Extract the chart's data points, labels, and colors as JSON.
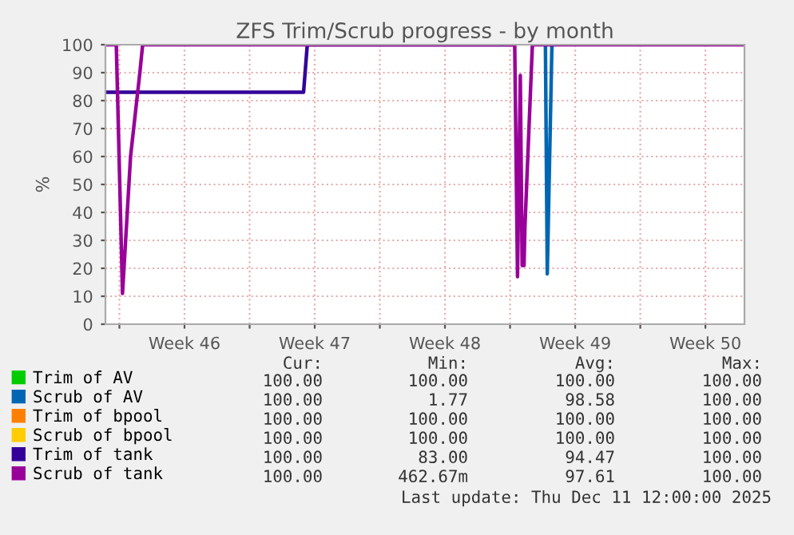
{
  "chart_data": {
    "type": "line",
    "title": "ZFS Trim/Scrub progress - by month",
    "ylabel": "%",
    "xlim": [
      "2025-11-09T06:00",
      "2025-12-13T14:24"
    ],
    "ylim": [
      0,
      100
    ],
    "xticks": [
      {
        "value": "2025-11-10T00:00",
        "label": null
      },
      {
        "value": "2025-11-13T12:00",
        "label": "Week 46"
      },
      {
        "value": "2025-11-17T00:00",
        "label": null
      },
      {
        "value": "2025-11-20T12:00",
        "label": "Week 47"
      },
      {
        "value": "2025-11-24T00:00",
        "label": null
      },
      {
        "value": "2025-11-27T12:00",
        "label": "Week 48"
      },
      {
        "value": "2025-12-01T00:00",
        "label": null
      },
      {
        "value": "2025-12-04T12:00",
        "label": "Week 49"
      },
      {
        "value": "2025-12-08T00:00",
        "label": null
      },
      {
        "value": "2025-12-11T12:00",
        "label": "Week 50"
      }
    ],
    "yticks": [
      0,
      10,
      20,
      30,
      40,
      50,
      60,
      70,
      80,
      90,
      100
    ],
    "grid": true,
    "legend": "bottom",
    "marker": "none",
    "line_style": "solid",
    "series": [
      {
        "name": "Trim of AV",
        "color": "#00cc00"
      },
      {
        "name": "Scrub of AV",
        "color": "#0066b3",
        "x": [
          "2025-12-02T21:36",
          "2025-12-03T00:00",
          "2025-12-03T06:00"
        ],
        "values": [
          100,
          18,
          100
        ]
      },
      {
        "name": "Trim of bpool",
        "color": "#ff8000"
      },
      {
        "name": "Scrub of bpool",
        "color": "#ffcc00"
      },
      {
        "name": "Trim of tank",
        "color": "#330099",
        "x": [
          "2025-11-09T06:00",
          "2025-11-19T21:36",
          "2025-11-20T02:24",
          "2025-12-01T04:48"
        ],
        "values": [
          83,
          83,
          100,
          100
        ]
      },
      {
        "name": "Scrub of tank",
        "color": "#990099",
        "x": [
          "2025-11-09T06:00",
          "2025-11-09T20:00",
          "2025-11-10T04:00",
          "2025-11-10T14:24",
          "2025-11-11T02:24",
          "2025-11-11T06:00",
          "2025-11-30T09:36",
          "2025-11-30T12:00",
          "2025-11-30T16:48",
          "2025-12-01T06:00",
          "2025-12-01T09:36",
          "2025-12-01T13:12",
          "2025-12-01T15:36",
          "2025-12-01T18:00",
          "2025-12-01T19:12",
          "2025-12-02T04:48",
          "2025-12-13T14:24"
        ],
        "values": [
          100,
          100,
          11,
          60,
          90,
          100,
          100,
          null,
          100,
          100,
          17,
          89,
          21,
          21,
          35,
          100,
          100
        ]
      }
    ],
    "annotations": [
      "Cur:",
      "Min:",
      "Avg:",
      "Max:",
      "100.00",
      "100.00",
      "100.00",
      "100.00",
      "100.00",
      "1.77",
      "98.58",
      "100.00",
      "100.00",
      "100.00",
      "100.00",
      "100.00",
      "100.00",
      "100.00",
      "100.00",
      "100.00",
      "100.00",
      "83.00",
      "94.47",
      "100.00",
      "100.00",
      "462.67m",
      "97.61",
      "100.00",
      "Last update: Thu Dec 11 12:00:00 2025"
    ]
  }
}
